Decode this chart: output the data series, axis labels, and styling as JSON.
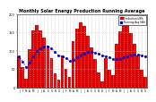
{
  "title": "Monthly Solar Energy Production Running Average",
  "bar_color": "#dd0000",
  "avg_color": "#0000cc",
  "background": "#ffffff",
  "grid_color": "#bbbbbb",
  "values": [
    85,
    55,
    25,
    105,
    155,
    170,
    155,
    135,
    115,
    80,
    38,
    22,
    88,
    52,
    30,
    125,
    160,
    178,
    168,
    140,
    110,
    78,
    42,
    18,
    80,
    48,
    35,
    120,
    152,
    182,
    172,
    148,
    120,
    88,
    48,
    28
  ],
  "running_avg": [
    85,
    70,
    55,
    68,
    85,
    99,
    107,
    111,
    112,
    106,
    97,
    87,
    84,
    80,
    73,
    76,
    82,
    88,
    93,
    96,
    96,
    95,
    92,
    87,
    85,
    82,
    78,
    77,
    78,
    82,
    85,
    88,
    89,
    89,
    88,
    85
  ],
  "ylim": [
    0,
    200
  ],
  "ytick_vals": [
    0,
    50,
    100,
    150,
    200
  ],
  "ytick_labels": [
    "0",
    "50",
    "100",
    "150",
    "200"
  ],
  "legend_entries": [
    "Production kWh",
    "Running Avg kWh"
  ],
  "legend_colors": [
    "#dd0000",
    "#0000cc"
  ],
  "title_fontsize": 3.5,
  "tick_fontsize": 2.5
}
